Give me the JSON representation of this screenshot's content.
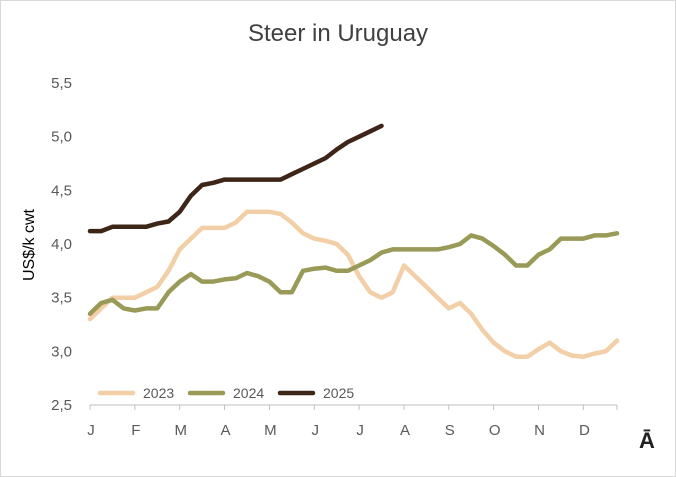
{
  "chart_data": {
    "type": "line",
    "title": "Steer in Uruguay",
    "xlabel": "",
    "ylabel": "US$/k cwt",
    "ylim": [
      2.5,
      5.5
    ],
    "y_ticks": [
      "2,5",
      "3,0",
      "3,5",
      "4,0",
      "4,5",
      "5,0",
      "5,5"
    ],
    "x_ticks": [
      "J",
      "F",
      "M",
      "A",
      "M",
      "J",
      "J",
      "A",
      "S",
      "O",
      "N",
      "D"
    ],
    "xlim": [
      0,
      47
    ],
    "x_unit": "week of year (4 per month)",
    "grid": false,
    "legend": "bottom-left",
    "series": [
      {
        "name": "2023",
        "color": "#f2cfa6",
        "x": [
          0,
          1,
          2,
          3,
          4,
          5,
          6,
          7,
          8,
          9,
          10,
          11,
          12,
          13,
          14,
          15,
          16,
          17,
          18,
          19,
          20,
          21,
          22,
          23,
          24,
          25,
          26,
          27,
          28,
          29,
          30,
          31,
          32,
          33,
          34,
          35,
          36,
          37,
          38,
          39,
          40,
          41,
          42,
          43,
          44,
          45,
          46,
          47
        ],
        "values": [
          3.3,
          3.4,
          3.5,
          3.5,
          3.5,
          3.55,
          3.6,
          3.75,
          3.95,
          4.05,
          4.15,
          4.15,
          4.15,
          4.2,
          4.3,
          4.3,
          4.3,
          4.28,
          4.2,
          4.1,
          4.05,
          4.03,
          4.0,
          3.9,
          3.7,
          3.55,
          3.5,
          3.55,
          3.8,
          3.7,
          3.6,
          3.5,
          3.4,
          3.45,
          3.35,
          3.2,
          3.08,
          3.0,
          2.95,
          2.95,
          3.02,
          3.08,
          3.0,
          2.96,
          2.95,
          2.98,
          3.0,
          3.1
        ]
      },
      {
        "name": "2024",
        "color": "#9a9a58",
        "x": [
          0,
          1,
          2,
          3,
          4,
          5,
          6,
          7,
          8,
          9,
          10,
          11,
          12,
          13,
          14,
          15,
          16,
          17,
          18,
          19,
          20,
          21,
          22,
          23,
          24,
          25,
          26,
          27,
          28,
          29,
          30,
          31,
          32,
          33,
          34,
          35,
          36,
          37,
          38,
          39,
          40,
          41,
          42,
          43,
          44,
          45,
          46,
          47
        ],
        "values": [
          3.35,
          3.45,
          3.48,
          3.4,
          3.38,
          3.4,
          3.4,
          3.55,
          3.65,
          3.72,
          3.65,
          3.65,
          3.67,
          3.68,
          3.73,
          3.7,
          3.65,
          3.55,
          3.55,
          3.75,
          3.77,
          3.78,
          3.75,
          3.75,
          3.8,
          3.85,
          3.92,
          3.95,
          3.95,
          3.95,
          3.95,
          3.95,
          3.97,
          4.0,
          4.08,
          4.05,
          3.98,
          3.9,
          3.8,
          3.8,
          3.9,
          3.95,
          4.05,
          4.05,
          4.05,
          4.08,
          4.08,
          4.1
        ]
      },
      {
        "name": "2025",
        "color": "#3d2518",
        "x": [
          0,
          1,
          2,
          3,
          4,
          5,
          6,
          7,
          8,
          9,
          10,
          11,
          12,
          13,
          14,
          15,
          16,
          17,
          18,
          19,
          20,
          21,
          22,
          23,
          24,
          25,
          26
        ],
        "values": [
          4.12,
          4.12,
          4.16,
          4.16,
          4.16,
          4.16,
          4.19,
          4.21,
          4.3,
          4.45,
          4.55,
          4.57,
          4.6,
          4.6,
          4.6,
          4.6,
          4.6,
          4.6,
          4.65,
          4.7,
          4.75,
          4.8,
          4.88,
          4.95,
          5.0,
          5.05,
          5.1
        ]
      }
    ]
  },
  "logo": "Ā"
}
